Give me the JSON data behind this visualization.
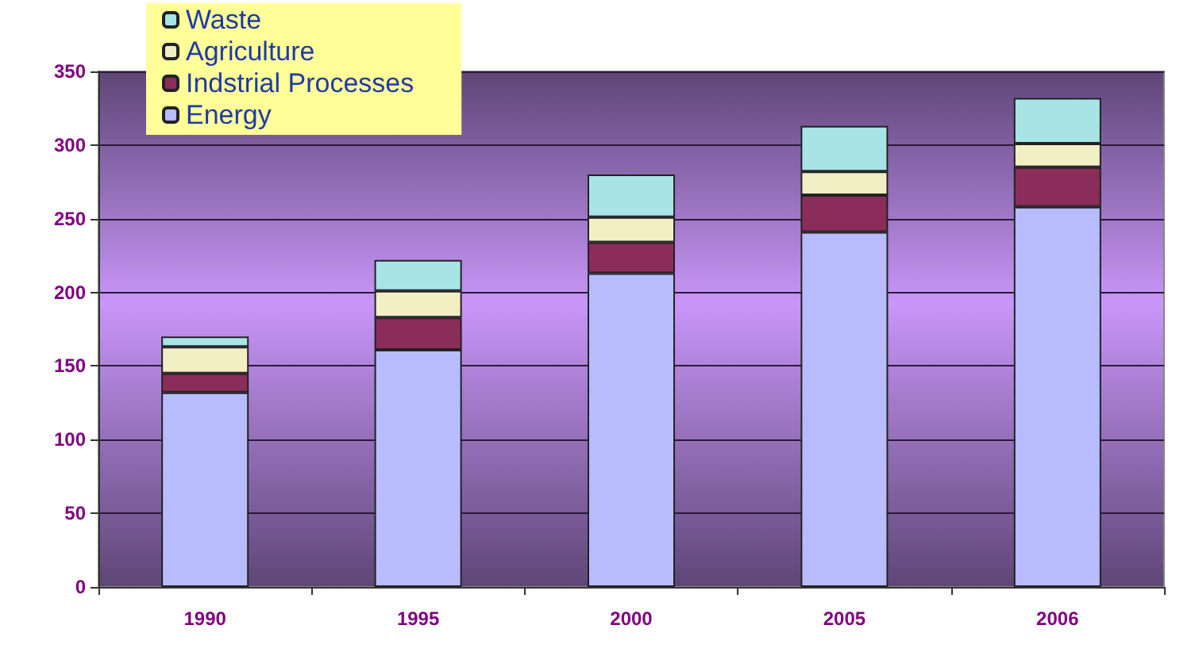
{
  "chart_data": {
    "type": "bar",
    "stacked": true,
    "categories": [
      "1990",
      "1995",
      "2000",
      "2005",
      "2006"
    ],
    "series": [
      {
        "name": "Energy",
        "color": "#b8bcff",
        "values": [
          132,
          161,
          213,
          241,
          258
        ]
      },
      {
        "name": "Indstrial Processes",
        "color": "#8b2d5a",
        "values": [
          13,
          22,
          21,
          25,
          27
        ]
      },
      {
        "name": "Agriculture",
        "color": "#f3efc4",
        "values": [
          18,
          18,
          17,
          16,
          16
        ]
      },
      {
        "name": "Waste",
        "color": "#a8e4e6",
        "values": [
          7,
          21,
          29,
          31,
          31
        ]
      }
    ],
    "ylim": [
      0,
      350
    ],
    "yticks": [
      0,
      50,
      100,
      150,
      200,
      250,
      300,
      350
    ],
    "grid": "y",
    "legend": "top left"
  }
}
